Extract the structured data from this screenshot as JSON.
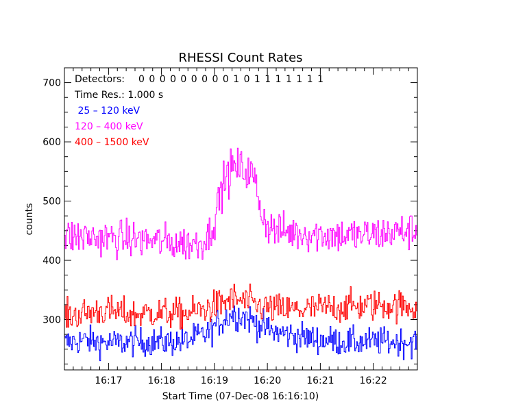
{
  "chart_data": {
    "type": "line",
    "title": "RHESSI Count Rates",
    "xlabel": "Start Time (07-Dec-08 16:16:10)",
    "ylabel": "counts",
    "x_unit": "UT time",
    "x_range": [
      "16:16:10",
      "16:22:50"
    ],
    "x_ticks": [
      "16:17",
      "16:18",
      "16:19",
      "16:20",
      "16:21",
      "16:22"
    ],
    "ylim": [
      215,
      725
    ],
    "y_ticks": [
      300,
      400,
      500,
      600,
      700
    ],
    "grid": false,
    "legend_position": "top-left",
    "annotations": {
      "detectors_label": "Detectors:",
      "detectors_value": "0 0 0 0 0 0 0 0 0 1 0 1 1 1 1 1 1 1",
      "time_res": "Time Res.: 1.000 s"
    },
    "series": [
      {
        "name": " 25 – 120 keV",
        "color": "#0000ff",
        "points": [
          [
            "16:16:10",
            260
          ],
          [
            "16:16:30",
            265
          ],
          [
            "16:16:50",
            262
          ],
          [
            "16:17:10",
            260
          ],
          [
            "16:17:30",
            263
          ],
          [
            "16:17:50",
            262
          ],
          [
            "16:18:10",
            262
          ],
          [
            "16:18:30",
            265
          ],
          [
            "16:18:50",
            275
          ],
          [
            "16:19:05",
            295
          ],
          [
            "16:19:20",
            310
          ],
          [
            "16:19:35",
            305
          ],
          [
            "16:19:50",
            292
          ],
          [
            "16:20:05",
            280
          ],
          [
            "16:20:30",
            273
          ],
          [
            "16:20:50",
            268
          ],
          [
            "16:21:10",
            265
          ],
          [
            "16:21:30",
            262
          ],
          [
            "16:21:50",
            262
          ],
          [
            "16:22:10",
            263
          ],
          [
            "16:22:30",
            262
          ],
          [
            "16:22:50",
            263
          ]
        ]
      },
      {
        "name": "120 – 400 keV",
        "color": "#ff00ff",
        "points": [
          [
            "16:16:10",
            440
          ],
          [
            "16:16:30",
            440
          ],
          [
            "16:16:50",
            438
          ],
          [
            "16:17:10",
            437
          ],
          [
            "16:17:30",
            435
          ],
          [
            "16:17:50",
            433
          ],
          [
            "16:18:10",
            430
          ],
          [
            "16:18:30",
            428
          ],
          [
            "16:18:45",
            430
          ],
          [
            "16:18:55",
            445
          ],
          [
            "16:19:00",
            470
          ],
          [
            "16:19:05",
            500
          ],
          [
            "16:19:10",
            530
          ],
          [
            "16:19:20",
            555
          ],
          [
            "16:19:30",
            555
          ],
          [
            "16:19:40",
            548
          ],
          [
            "16:19:45",
            538
          ],
          [
            "16:19:50",
            505
          ],
          [
            "16:19:55",
            475
          ],
          [
            "16:20:00",
            460
          ],
          [
            "16:20:10",
            450
          ],
          [
            "16:20:30",
            447
          ],
          [
            "16:20:50",
            445
          ],
          [
            "16:21:10",
            443
          ],
          [
            "16:21:30",
            442
          ],
          [
            "16:21:50",
            442
          ],
          [
            "16:22:10",
            445
          ],
          [
            "16:22:30",
            448
          ],
          [
            "16:22:50",
            450
          ]
        ]
      },
      {
        "name": "400 – 1500 keV",
        "color": "#ff0000",
        "points": [
          [
            "16:16:10",
            305
          ],
          [
            "16:16:30",
            310
          ],
          [
            "16:16:50",
            315
          ],
          [
            "16:17:10",
            312
          ],
          [
            "16:17:30",
            308
          ],
          [
            "16:17:50",
            312
          ],
          [
            "16:18:10",
            310
          ],
          [
            "16:18:30",
            310
          ],
          [
            "16:18:50",
            318
          ],
          [
            "16:19:05",
            325
          ],
          [
            "16:19:20",
            335
          ],
          [
            "16:19:35",
            330
          ],
          [
            "16:19:50",
            322
          ],
          [
            "16:20:05",
            318
          ],
          [
            "16:20:30",
            316
          ],
          [
            "16:20:50",
            318
          ],
          [
            "16:21:10",
            320
          ],
          [
            "16:21:30",
            322
          ],
          [
            "16:21:50",
            323
          ],
          [
            "16:22:10",
            325
          ],
          [
            "16:22:30",
            323
          ],
          [
            "16:22:50",
            322
          ]
        ]
      }
    ]
  }
}
